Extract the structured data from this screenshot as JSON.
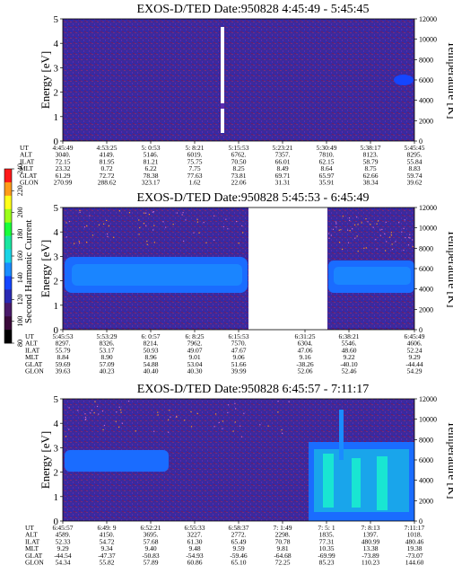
{
  "colorbar": {
    "label": "Second Harmonic Current",
    "ticks": [
      "80",
      "100",
      "120",
      "140",
      "160",
      "180",
      "200",
      "220",
      "240"
    ],
    "colors": [
      "#000000",
      "#3a0a3a",
      "#4a1a6a",
      "#2a2ab4",
      "#1446ff",
      "#1a8cff",
      "#19d4e6",
      "#19e6a0",
      "#19ff3a",
      "#9cff19",
      "#ffff19",
      "#ff9c19",
      "#ff1919"
    ]
  },
  "chart_data": [
    {
      "type": "heatmap",
      "title": "EXOS-D/TED   Date:950828  4:45:49 - 5:45:45",
      "ylabel": "Energy [eV]",
      "ylabel_right": "Temperature [K]",
      "ylim": [
        0,
        5
      ],
      "ylim_right": [
        0,
        12000
      ],
      "yticks": [
        "0",
        "1",
        "2",
        "3",
        "4",
        "5"
      ],
      "yticks_right": [
        "0",
        "2000",
        "4000",
        "6000",
        "8000",
        "10000",
        "12000"
      ],
      "notes": "background mostly purple ~110 level; narrow white vertical spike near 5:14; small blue blob at right edge near 2.7 eV",
      "table": {
        "row_labels": [
          "UT",
          "ALT",
          "ILAT",
          "MLT",
          "GLAT",
          "GLON"
        ],
        "columns": [
          [
            "4:45:49",
            "3040.",
            "72.15",
            "23.32",
            "61.29",
            "270.99"
          ],
          [
            "4:53:25",
            "4149.",
            "81.95",
            "0.72",
            "72.72",
            "288.62"
          ],
          [
            "5: 0:53",
            "5146.",
            "81.21",
            "6.22",
            "78.38",
            "323.17"
          ],
          [
            "5: 8:21",
            "6019.",
            "75.75",
            "7.75",
            "77.63",
            "1.62"
          ],
          [
            "5:15:53",
            "6762.",
            "70.50",
            "8.25",
            "73.81",
            "22.06"
          ],
          [
            "5:23:21",
            "7357.",
            "66.01",
            "8.49",
            "69.71",
            "31.31"
          ],
          [
            "5:30:49",
            "7810.",
            "62.15",
            "8.64",
            "65.97",
            "35.91"
          ],
          [
            "5:38:17",
            "8123.",
            "58.79",
            "8.75",
            "62.66",
            "38.34"
          ],
          [
            "5:45:45",
            "8295.",
            "55.84",
            "8.83",
            "59.74",
            "39.62"
          ]
        ]
      }
    },
    {
      "type": "heatmap",
      "title": "EXOS-D/TED   Date:950828  5:45:53 - 6:45:49",
      "ylabel": "Energy [eV]",
      "ylabel_right": "Temperature [K]",
      "ylim": [
        0,
        5
      ],
      "ylim_right": [
        0,
        12000
      ],
      "yticks": [
        "0",
        "1",
        "2",
        "3",
        "4",
        "5"
      ],
      "yticks_right": [
        "0",
        "2000",
        "4000",
        "6000",
        "8000",
        "10000",
        "12000"
      ],
      "notes": "blue band centred near 2.3 eV across most of panel; data gap (white) between about 6:18 and 6:31",
      "table": {
        "row_labels": [
          "UT",
          "ALT",
          "ILAT",
          "MLT",
          "GLAT",
          "GLON"
        ],
        "columns": [
          [
            "5:45:53",
            "8297.",
            "55.79",
            "8.84",
            "59.69",
            "39.63"
          ],
          [
            "5:53:29",
            "8326.",
            "53.17",
            "8.90",
            "57.09",
            "40.23"
          ],
          [
            "6: 0:57",
            "8214.",
            "50.93",
            "8.96",
            "54.88",
            "40.40"
          ],
          [
            "6: 8:25",
            "7962.",
            "49.07",
            "9.01",
            "53.04",
            "40.30"
          ],
          [
            "6:15:53",
            "7570.",
            "47.67",
            "9.06",
            "51.66",
            "39.99"
          ],
          [
            "6:31:25",
            "6304.",
            "47.06",
            "9.16",
            "-38.26",
            "52.06"
          ],
          [
            "6:38:21",
            "5546.",
            "48.60",
            "9.22",
            "-40.10",
            "52.46"
          ],
          [
            "6:45:49",
            "4606.",
            "52.24",
            "9.29",
            "-44.44",
            "54.29"
          ]
        ]
      }
    },
    {
      "type": "heatmap",
      "title": "EXOS-D/TED   Date:950828  6:45:57 - 7:11:17",
      "ylabel": "Energy [eV]",
      "ylabel_right": "Temperature [K]",
      "ylim": [
        0,
        5
      ],
      "ylim_right": [
        0,
        12000
      ],
      "yticks": [
        "0",
        "1",
        "2",
        "3",
        "4",
        "5"
      ],
      "yticks_right": [
        "0",
        "2000",
        "4000",
        "6000",
        "8000",
        "10000",
        "12000"
      ],
      "notes": "blue band near 2.6 eV from start to ~6:53; bright cyan/blue region from ~7:04 to end, 0-3 eV",
      "table": {
        "row_labels": [
          "UT",
          "ALT",
          "ILAT",
          "MLT",
          "GLAT",
          "GLON"
        ],
        "columns": [
          [
            "6:45:57",
            "4589.",
            "52.33",
            "9.29",
            "-44.54",
            "54.34"
          ],
          [
            "6:49: 9",
            "4150.",
            "54.72",
            "9.34",
            "-47.37",
            "55.82"
          ],
          [
            "6:52:21",
            "3695.",
            "57.68",
            "9.40",
            "-50.83",
            "57.89"
          ],
          [
            "6:55:33",
            "3227.",
            "61.30",
            "9.48",
            "-54.93",
            "60.86"
          ],
          [
            "6:58:37",
            "2772.",
            "65.49",
            "9.59",
            "-59.46",
            "65.10"
          ],
          [
            "7: 1:49",
            "2298.",
            "70.78",
            "9.81",
            "-64.68",
            "72.25"
          ],
          [
            "7: 5: 1",
            "1835.",
            "77.31",
            "10.35",
            "-69.99",
            "85.23"
          ],
          [
            "7: 8:13",
            "1397.",
            "480.99",
            "13.38",
            "-73.89",
            "110.23"
          ],
          [
            "7:11:17",
            "1018.",
            "480.46",
            "19.38",
            "-73.07",
            "144.60"
          ]
        ]
      }
    }
  ]
}
